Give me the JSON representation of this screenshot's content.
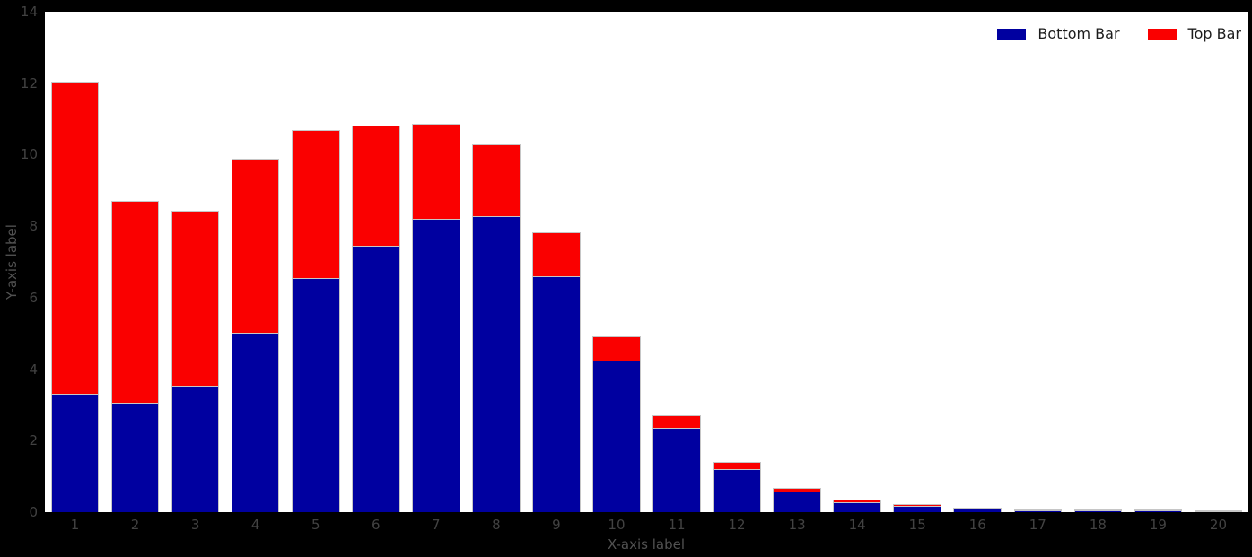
{
  "chart_data": {
    "type": "bar",
    "stacked": true,
    "title": "",
    "xlabel": "X-axis label",
    "ylabel": "Y-axis label",
    "categories": [
      "1",
      "2",
      "3",
      "4",
      "5",
      "6",
      "7",
      "8",
      "9",
      "10",
      "11",
      "12",
      "13",
      "14",
      "15",
      "16",
      "17",
      "18",
      "19",
      "20"
    ],
    "series": [
      {
        "name": "Bottom Bar",
        "color": "#0000A0",
        "values": [
          3.31,
          3.07,
          3.55,
          5.02,
          6.54,
          7.45,
          8.2,
          8.28,
          6.59,
          4.23,
          2.37,
          1.2,
          0.58,
          0.27,
          0.17,
          0.09,
          0.05,
          0.04,
          0.04,
          0.02
        ]
      },
      {
        "name": "Top Bar",
        "color": "#FA0000",
        "values": [
          8.74,
          5.63,
          4.88,
          4.86,
          4.14,
          3.36,
          2.66,
          2.01,
          1.24,
          0.7,
          0.33,
          0.2,
          0.11,
          0.07,
          0.06,
          0.04,
          0.02,
          0.01,
          0.02,
          0.01
        ]
      }
    ],
    "ylim": [
      0,
      14
    ],
    "yticks": [
      0,
      2,
      4,
      6,
      8,
      10,
      12,
      14
    ],
    "bar_width_fraction": 0.8,
    "grid": false,
    "legend": {
      "position": "top-right",
      "labels": [
        "Bottom Bar",
        "Top Bar"
      ]
    },
    "colors": {
      "figure_background": "#000000",
      "plot_background": "#ffffff",
      "bar_edge": "#c6c6c6",
      "tick_label": "#424242",
      "axis_label": "#525252",
      "legend_text": "#1c1c1c"
    }
  }
}
